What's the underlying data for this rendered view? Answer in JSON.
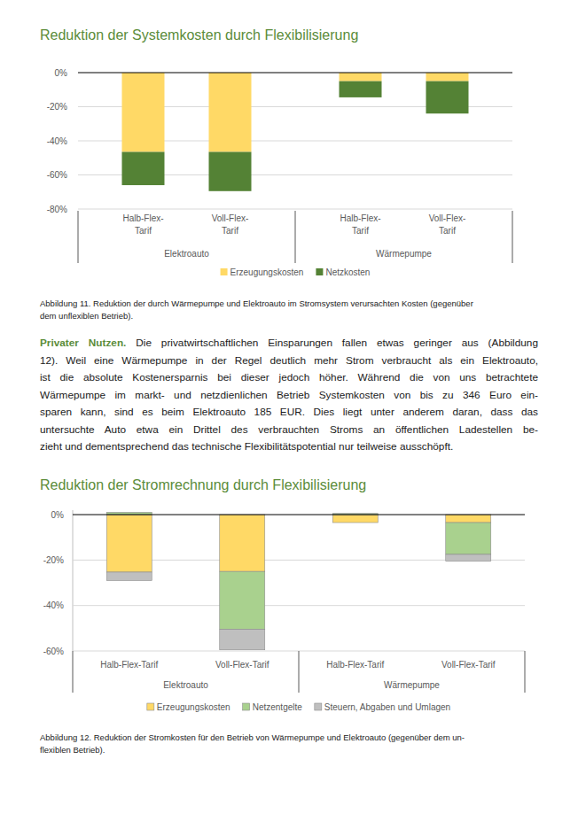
{
  "chart_data": [
    {
      "type": "bar",
      "title": "Reduktion der Systemkosten durch Flexibilisierung",
      "categories": [
        "Halb-Flex-Tarif",
        "Voll-Flex-Tarif",
        "Halb-Flex-Tarif",
        "Voll-Flex-Tarif"
      ],
      "category_groups": [
        "Elektroauto",
        "Wärmepumpe"
      ],
      "series": [
        {
          "name": "Erzeugungskosten",
          "color": "#ffd966",
          "values": [
            -46.5,
            -46.5,
            -5,
            -5
          ]
        },
        {
          "name": "Netzkosten",
          "color": "#548235",
          "values": [
            -19.5,
            -23,
            -9.5,
            -19
          ]
        }
      ],
      "ylim": [
        -80,
        0
      ],
      "yticks": [
        {
          "value": 0,
          "label": "0%"
        },
        {
          "value": -20,
          "label": "-20%"
        },
        {
          "value": -40,
          "label": "-40%"
        },
        {
          "value": -60,
          "label": "-60%"
        },
        {
          "value": -80,
          "label": "-80%"
        }
      ],
      "grid": true,
      "stacked": true,
      "legend": "bottom"
    },
    {
      "type": "bar",
      "title": "Reduktion der Stromrechnung durch Flexibilisierung",
      "categories": [
        "Halb-Flex-Tarif",
        "Voll-Flex-Tarif",
        "Halb-Flex-Tarif",
        "Voll-Flex-Tarif"
      ],
      "category_groups": [
        "Elektroauto",
        "Wärmepumpe"
      ],
      "series": [
        {
          "name": "Erzeugungskosten",
          "color": "#ffd966",
          "values": [
            -25.3,
            -25,
            -3.5,
            -3.5
          ]
        },
        {
          "name": "Netzentgelte",
          "color": "#a9d18e",
          "values": [
            1,
            -25.5,
            0.5,
            -14
          ]
        },
        {
          "name": "Steuern, Abgaben und Umlagen",
          "color": "#bfbfbf",
          "values": [
            -3.7,
            -9,
            0,
            -3
          ]
        }
      ],
      "ylim": [
        -60,
        2
      ],
      "yticks": [
        {
          "value": 0,
          "label": "0%"
        },
        {
          "value": -20,
          "label": "-20%"
        },
        {
          "value": -40,
          "label": "-40%"
        },
        {
          "value": -60,
          "label": "-60%"
        }
      ],
      "grid": true,
      "stacked": true,
      "legend": "bottom"
    }
  ],
  "captions": [
    [
      "Abbildung 11. Reduktion der durch Wärmepumpe und Elektroauto im Stromsystem verursachten Kosten (gegenüber",
      "dem unflexiblen Betrieb)."
    ],
    [
      "Abbildung 12. Reduktion der Stromkosten für den Betrieb von Wärmepumpe und Elektroauto (gegenüber dem un-",
      "flexiblen Betrieb)."
    ]
  ],
  "paragraph": {
    "lead": "Privater Nutzen.",
    "lines": [
      "Die privatwirtschaftlichen Einsparungen fallen etwas geringer aus (Abbildung",
      "12). Weil eine Wärmepumpe in der Regel deutlich mehr Strom verbraucht als ein Elektroauto,",
      "ist die absolute Kostenersparnis bei dieser jedoch höher. Während die von uns betrachtete",
      "Wärmepumpe im markt- und netzdienlichen Betrieb Systemkosten von bis zu 346 Euro ein-",
      "sparen kann, sind es beim Elektroauto 185 EUR. Dies liegt unter anderem daran, dass das",
      "untersuchte Auto etwa ein Drittel des verbrauchten Stroms an öffentlichen Ladestellen be-",
      "zieht und dementsprechend das technische Flexibilitätspotential nur teilweise ausschöpft."
    ]
  }
}
